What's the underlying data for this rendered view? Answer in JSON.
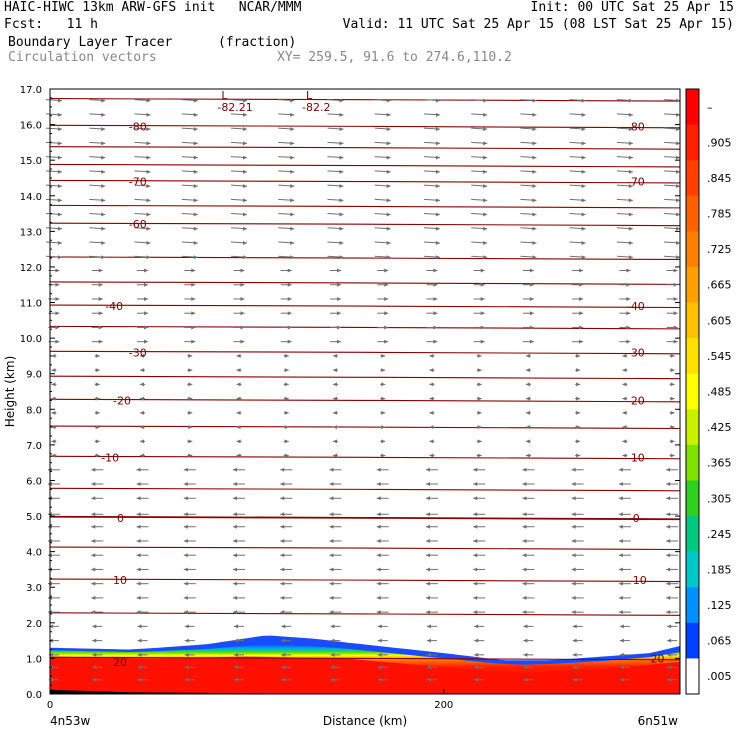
{
  "header": {
    "line1_left": "HAIC-HIWC 13km ARW-GFS init   NCAR/MMM",
    "line1_right": "Init: 00 UTC Sat 25 Apr 15",
    "line2_left": "Fcst:   11 h",
    "line2_right": "Valid: 11 UTC Sat 25 Apr 15 (08 LST Sat 25 Apr 15)",
    "line3_left": "Boundary Layer Tracer",
    "line3_mid": "(fraction)",
    "line4_left": "Circulation vectors",
    "line4_mid": "XY= 259.5, 91.6 to 274.6,110.2"
  },
  "chart_data": {
    "type": "heatmap",
    "xlabel": "Distance (km)",
    "ylabel": "Height (km)",
    "x_ticks": [
      "0",
      "200"
    ],
    "x_tick_values": [
      0,
      200
    ],
    "x_range": [
      0,
      320
    ],
    "ylim": [
      0,
      17
    ],
    "y_ticks": [
      "0.0",
      "1.0",
      "2.0",
      "3.0",
      "4.0",
      "5.0",
      "6.0",
      "7.0",
      "8.0",
      "9.0",
      "10.0",
      "11.0",
      "12.0",
      "13.0",
      "14.0",
      "15.0",
      "16.0",
      "17.0"
    ],
    "y_tick_values": [
      0,
      1,
      2,
      3,
      4,
      5,
      6,
      7,
      8,
      9,
      10,
      11,
      12,
      13,
      14,
      15,
      16,
      17
    ],
    "endpoint_labels": {
      "left": "4n53w",
      "right": "6n51w"
    },
    "colorbar": {
      "labels": [
        "–",
        ".905",
        ".845",
        ".785",
        ".725",
        ".665",
        ".605",
        ".545",
        ".485",
        ".425",
        ".365",
        ".305",
        ".245",
        ".185",
        ".125",
        ".065",
        ".005"
      ],
      "colors": [
        "#ff0000",
        "#ff2000",
        "#ff4000",
        "#ff6000",
        "#ff8000",
        "#ffa000",
        "#ffc000",
        "#ffe000",
        "#ffff00",
        "#c8f000",
        "#80e000",
        "#30d020",
        "#00c880",
        "#00c8c8",
        "#0090ff",
        "#0040ff",
        "#ffffff"
      ]
    },
    "temperature_contours": [
      {
        "value": 20,
        "height_km": 1.0
      },
      {
        "value": 10,
        "height_km": 3.2
      },
      {
        "value": 0,
        "height_km": 4.95
      },
      {
        "value": -10,
        "height_km": 6.65
      },
      {
        "value": -20,
        "height_km": 8.25
      },
      {
        "value": -30,
        "height_km": 9.6
      },
      {
        "value": -40,
        "height_km": 10.9
      },
      {
        "value": -60,
        "height_km": 13.2
      },
      {
        "value": -70,
        "height_km": 14.4
      },
      {
        "value": -80,
        "height_km": 15.95
      }
    ],
    "extra_contours_km": [
      2.25,
      4.1,
      5.75,
      7.5,
      8.9,
      10.3,
      11.55,
      12.25,
      13.7,
      14.85,
      15.35,
      16.7
    ],
    "contour_labels": [
      {
        "text": "-80",
        "x_km": 40,
        "y_km": 15.95
      },
      {
        "text": "-80",
        "x_km": 293,
        "y_km": 15.95
      },
      {
        "text": "-70",
        "x_km": 40,
        "y_km": 14.4
      },
      {
        "text": "-70",
        "x_km": 293,
        "y_km": 14.4
      },
      {
        "text": "-60",
        "x_km": 40,
        "y_km": 13.2
      },
      {
        "text": "-40",
        "x_km": 28,
        "y_km": 10.9
      },
      {
        "text": "-40",
        "x_km": 293,
        "y_km": 10.9
      },
      {
        "text": "-30",
        "x_km": 40,
        "y_km": 9.6
      },
      {
        "text": "-30",
        "x_km": 293,
        "y_km": 9.6
      },
      {
        "text": "-20",
        "x_km": 32,
        "y_km": 8.25
      },
      {
        "text": "-20",
        "x_km": 293,
        "y_km": 8.25
      },
      {
        "text": "-10",
        "x_km": 26,
        "y_km": 6.65
      },
      {
        "text": "-10",
        "x_km": 293,
        "y_km": 6.65
      },
      {
        "text": "0",
        "x_km": 34,
        "y_km": 4.95
      },
      {
        "text": "0",
        "x_km": 296,
        "y_km": 4.95
      },
      {
        "text": "10",
        "x_km": 32,
        "y_km": 3.2
      },
      {
        "text": "10",
        "x_km": 296,
        "y_km": 3.2
      },
      {
        "text": "20",
        "x_km": 32,
        "y_km": 0.9
      },
      {
        "text": "20",
        "x_km": 305,
        "y_km": 1.0
      }
    ],
    "minima": [
      {
        "symbol": "L",
        "value": "-82.21",
        "x_km": 85,
        "y_km": 16.6
      },
      {
        "symbol": "L",
        "value": "-82.2",
        "x_km": 128,
        "y_km": 16.6
      }
    ],
    "tracer_top_km": [
      {
        "x": 0,
        "top": 1.3
      },
      {
        "x": 40,
        "top": 1.25
      },
      {
        "x": 55,
        "top": 1.3
      },
      {
        "x": 80,
        "top": 1.4
      },
      {
        "x": 110,
        "top": 1.65
      },
      {
        "x": 135,
        "top": 1.55
      },
      {
        "x": 150,
        "top": 1.45
      },
      {
        "x": 175,
        "top": 1.3
      },
      {
        "x": 200,
        "top": 1.15
      },
      {
        "x": 230,
        "top": 0.95
      },
      {
        "x": 255,
        "top": 0.95
      },
      {
        "x": 280,
        "top": 1.05
      },
      {
        "x": 305,
        "top": 1.15
      },
      {
        "x": 320,
        "top": 1.35
      }
    ],
    "tracer_red_top_km": [
      {
        "x": 0,
        "top": 1.05
      },
      {
        "x": 50,
        "top": 1.0
      },
      {
        "x": 100,
        "top": 1.05
      },
      {
        "x": 150,
        "top": 1.0
      },
      {
        "x": 200,
        "top": 0.75
      },
      {
        "x": 240,
        "top": 0.6
      },
      {
        "x": 280,
        "top": 0.7
      },
      {
        "x": 320,
        "top": 0.9
      }
    ],
    "terrain_km": [
      {
        "x": 0,
        "top": 0.12
      },
      {
        "x": 40,
        "top": 0.05
      },
      {
        "x": 80,
        "top": 0.03
      },
      {
        "x": 130,
        "top": 0.0
      },
      {
        "x": 320,
        "top": 0.0
      }
    ],
    "vector_columns_km": [
      2,
      24,
      47,
      71,
      96,
      120,
      145,
      169,
      194,
      218,
      243,
      268,
      292,
      316
    ],
    "vector_rows_km": [
      0.4,
      0.75,
      1.1,
      1.5,
      1.9,
      2.3,
      2.7,
      3.1,
      3.5,
      3.9,
      4.3,
      4.7,
      5.05,
      5.5,
      5.9,
      6.3,
      6.7,
      7.1,
      7.5,
      7.9,
      8.3,
      8.7,
      9.1,
      9.5,
      9.9,
      10.3,
      10.7,
      11.1,
      11.5,
      11.9,
      12.3,
      12.7,
      13.1,
      13.5,
      13.9,
      14.3,
      14.7,
      15.1,
      15.5,
      15.9,
      16.3,
      16.7
    ]
  }
}
